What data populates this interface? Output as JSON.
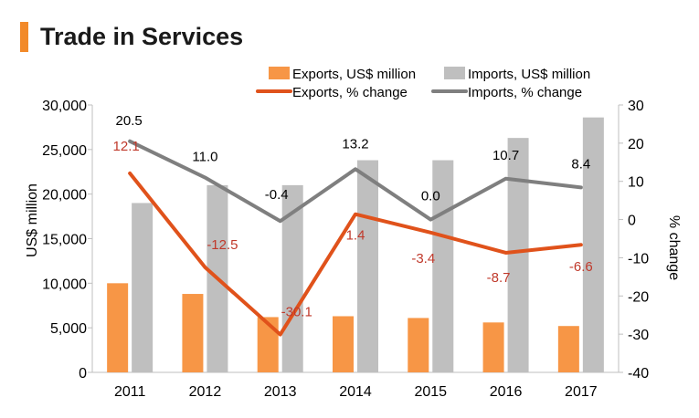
{
  "header": {
    "title": "Trade in Services"
  },
  "chart_data": {
    "type": "bar+line",
    "title": "Trade in Services",
    "categories": [
      "2011",
      "2012",
      "2013",
      "2014",
      "2015",
      "2016",
      "2017"
    ],
    "bar_series": [
      {
        "name": "Exports, US$ million",
        "color": "#f79646",
        "values": [
          10000,
          8800,
          6200,
          6300,
          6100,
          5600,
          5200
        ]
      },
      {
        "name": "Imports, US$ million",
        "color": "#bfbfbf",
        "values": [
          19000,
          21000,
          21000,
          23800,
          23800,
          26300,
          28600
        ]
      }
    ],
    "line_series": [
      {
        "name": "Exports, % change",
        "color": "#e0521b",
        "label_color": "#c0392b",
        "values": [
          12.1,
          -12.5,
          -30.1,
          1.4,
          -3.4,
          -8.7,
          -6.6
        ],
        "labels": [
          "12.1",
          "-12.5",
          "-30.1",
          "1.4",
          "-3.4",
          "-8.7",
          "-6.6"
        ]
      },
      {
        "name": "Imports, % change",
        "color": "#7f7f7f",
        "label_color": "#000000",
        "values": [
          20.5,
          11.0,
          -0.4,
          13.2,
          0.0,
          10.7,
          8.4
        ],
        "labels": [
          "20.5",
          "11.0",
          "-0.4",
          "13.2",
          "0.0",
          "10.7",
          "8.4"
        ]
      }
    ],
    "ylabel": "US$ million",
    "y2label": "% change",
    "ylim": [
      0,
      30000
    ],
    "y2lim": [
      -40,
      30
    ],
    "yticks": [
      "0",
      "5,000",
      "10,000",
      "15,000",
      "20,000",
      "25,000",
      "30,000"
    ],
    "y2ticks": [
      "-40",
      "-30",
      "-20",
      "-10",
      "0",
      "10",
      "20",
      "30"
    ],
    "legend_position": "top-center"
  }
}
